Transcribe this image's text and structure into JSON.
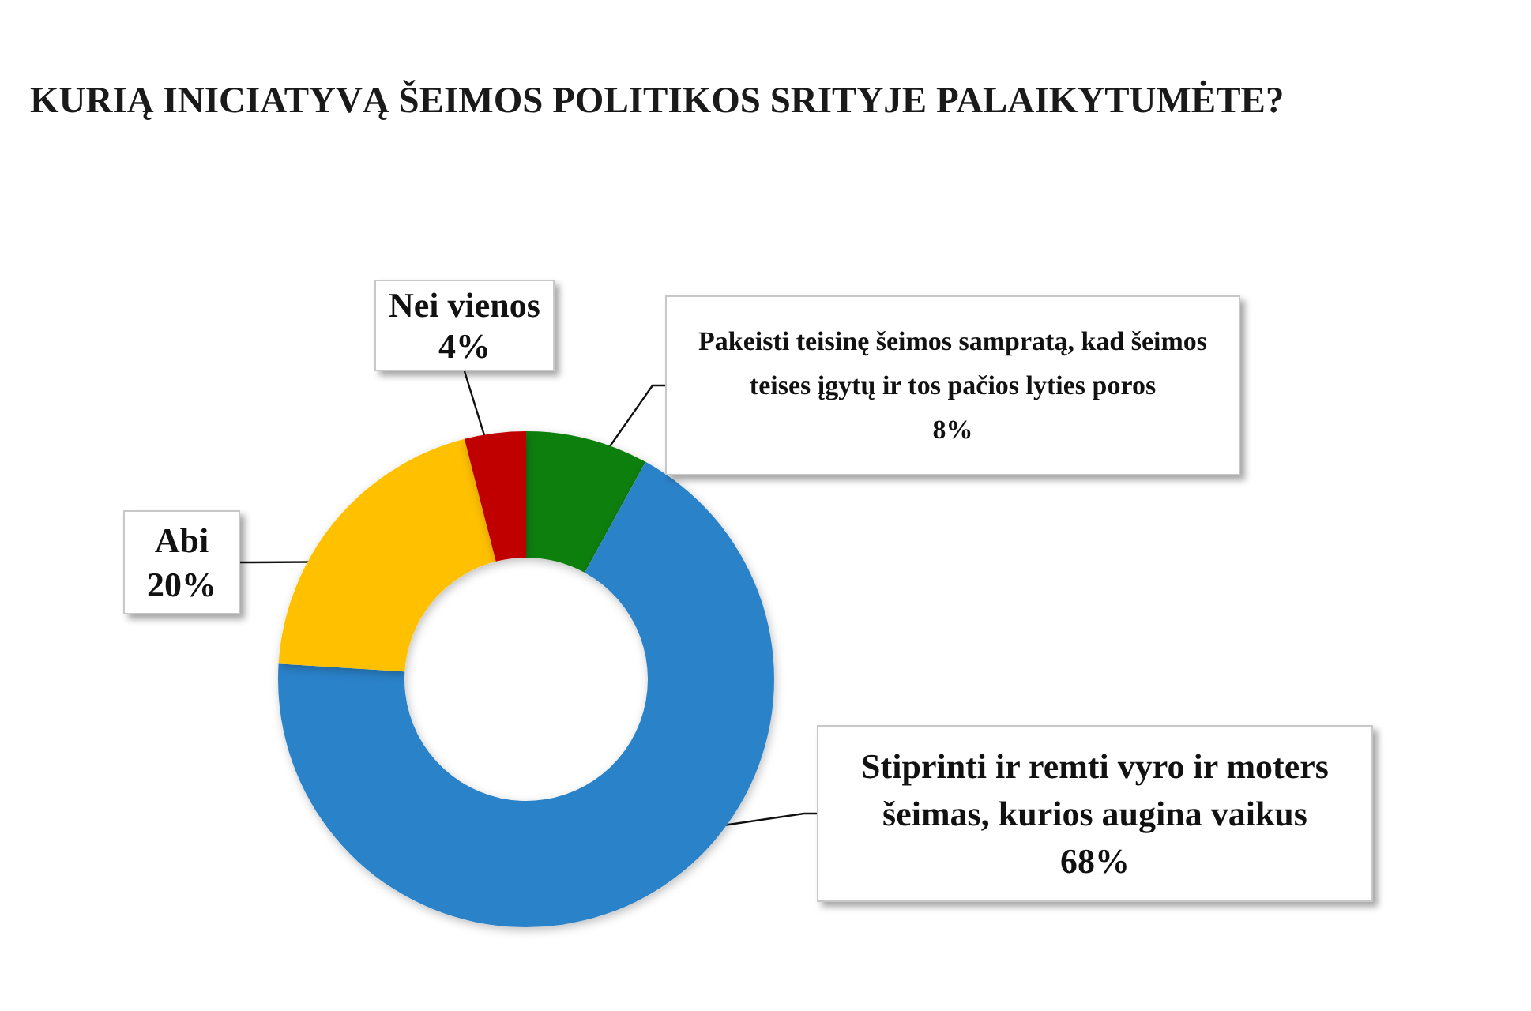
{
  "chart_data": {
    "type": "donut",
    "title": "KURIĄ INICIATYVĄ ŠEIMOS POLITIKOS SRITYJE PALAIKYTUMĖTE?",
    "categories": [
      "Pakeisti teisinę šeimos sampratą, kad šeimos teises įgytų ir tos pačios lyties poros",
      "Stiprinti ir remti vyro ir moters šeimas, kurios augina vaikus",
      "Abi",
      "Nei vienos"
    ],
    "values": [
      8,
      68,
      20,
      4
    ],
    "colors": [
      "#0b7f0b",
      "#2b82c9",
      "#ffc000",
      "#c00000"
    ],
    "value_labels": [
      "8%",
      "68%",
      "20%",
      "4%"
    ]
  }
}
